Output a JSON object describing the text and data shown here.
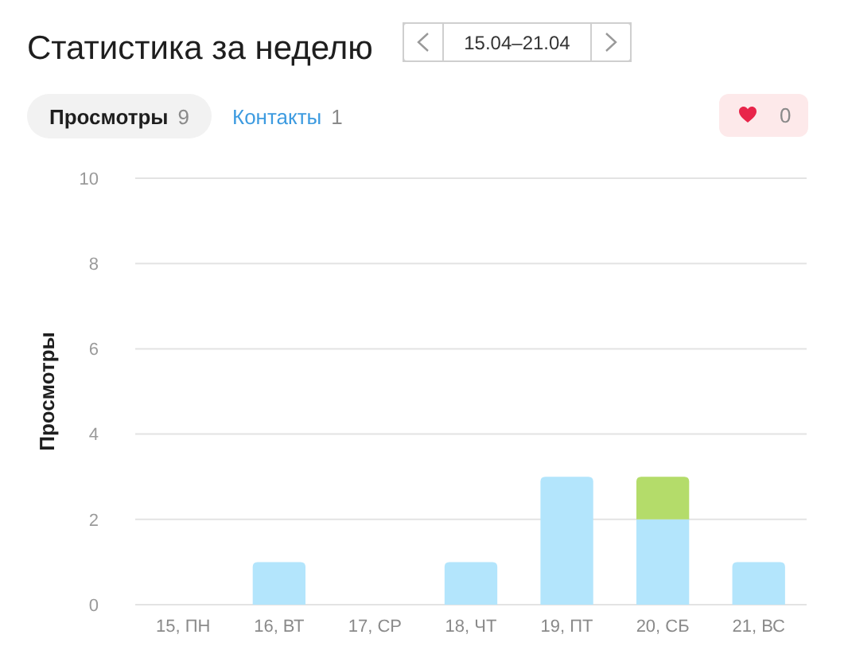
{
  "chart_data": {
    "type": "bar",
    "title": "Статистика за неделю",
    "subtitle": "15.04–21.04",
    "ylabel": "Просмотры",
    "categories": [
      "15, ПН",
      "16, ВТ",
      "17, СР",
      "18, ЧТ",
      "19, ПТ",
      "20, СБ",
      "21, ВС"
    ],
    "stacked": true,
    "series": [
      {
        "color": "#b3e5fc",
        "values": [
          0,
          1,
          0,
          1,
          3,
          2,
          1
        ]
      },
      {
        "color": "#b4dc6a",
        "values": [
          null,
          null,
          null,
          null,
          null,
          1,
          null
        ]
      }
    ],
    "ylim": [
      0,
      10
    ],
    "yticks": [
      0,
      2,
      4,
      6,
      8,
      10
    ],
    "grid": "y",
    "annotations": [
      "Просмотры 9",
      "Контакты 1",
      "0"
    ]
  }
}
